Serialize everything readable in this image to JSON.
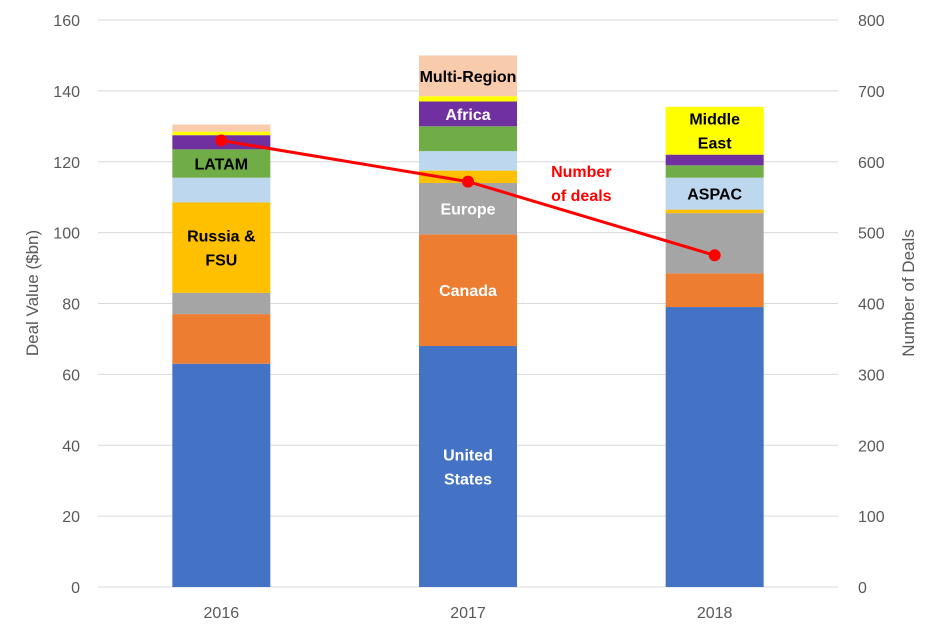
{
  "chart_data": {
    "type": "bar",
    "stacked": true,
    "title": "",
    "xlabel": "",
    "ylabel": "Deal Value ($bn)",
    "y2label": "Number of Deals",
    "ylim": [
      0,
      160
    ],
    "y2lim": [
      0,
      800
    ],
    "yticks": [
      "0",
      "20",
      "40",
      "60",
      "80",
      "100",
      "120",
      "140",
      "160"
    ],
    "y2ticks": [
      "0",
      "100",
      "200",
      "300",
      "400",
      "500",
      "600",
      "700",
      "800"
    ],
    "categories": [
      "2016",
      "2017",
      "2018"
    ],
    "series": [
      {
        "name": "United States",
        "color": "#4472c4",
        "values": [
          63,
          68,
          79
        ]
      },
      {
        "name": "Canada",
        "color": "#ed7d31",
        "values": [
          14,
          31.5,
          9.5
        ]
      },
      {
        "name": "Europe",
        "color": "#a5a5a5",
        "values": [
          6,
          14.5,
          17
        ]
      },
      {
        "name": "Russia & FSU",
        "color": "#ffc000",
        "values": [
          25.5,
          3.5,
          1
        ]
      },
      {
        "name": "ASPAC",
        "color": "#bdd7ee",
        "values": [
          7,
          5.5,
          9
        ]
      },
      {
        "name": "LATAM",
        "color": "#70ad47",
        "values": [
          8,
          7,
          3.5
        ]
      },
      {
        "name": "Africa",
        "color": "#7030a0",
        "values": [
          4,
          7,
          3
        ]
      },
      {
        "name": "Middle East",
        "color": "#ffff00",
        "values": [
          1,
          1.5,
          13.5
        ]
      },
      {
        "name": "Multi-Region",
        "color": "#f8cbad",
        "values": [
          2,
          11.5,
          0
        ]
      }
    ],
    "line_series": {
      "name": "Number of deals",
      "axis": "right",
      "color": "#ff0000",
      "values": [
        630,
        572,
        468
      ]
    },
    "segment_labels": [
      {
        "series": "United States",
        "category": "2017",
        "lines": [
          "United",
          "States"
        ],
        "text_color": "#ffffff"
      },
      {
        "series": "Canada",
        "category": "2017",
        "lines": [
          "Canada"
        ],
        "text_color": "#ffffff"
      },
      {
        "series": "Europe",
        "category": "2017",
        "lines": [
          "Europe"
        ],
        "text_color": "#ffffff"
      },
      {
        "series": "Russia & FSU",
        "category": "2016",
        "lines": [
          "Russia &",
          "FSU"
        ],
        "text_color": "#000000"
      },
      {
        "series": "LATAM",
        "category": "2016",
        "lines": [
          "LATAM"
        ],
        "text_color": "#000000"
      },
      {
        "series": "Africa",
        "category": "2017",
        "lines": [
          "Africa"
        ],
        "text_color": "#ffffff"
      },
      {
        "series": "Multi-Region",
        "category": "2017",
        "lines": [
          "Multi-Region"
        ],
        "text_color": "#000000"
      },
      {
        "series": "ASPAC",
        "category": "2018",
        "lines": [
          "ASPAC"
        ],
        "text_color": "#000000"
      },
      {
        "series": "Middle East",
        "category": "2018",
        "lines": [
          "Middle",
          "East"
        ],
        "text_color": "#000000"
      }
    ],
    "line_label_lines": [
      "Number",
      "of deals"
    ]
  }
}
